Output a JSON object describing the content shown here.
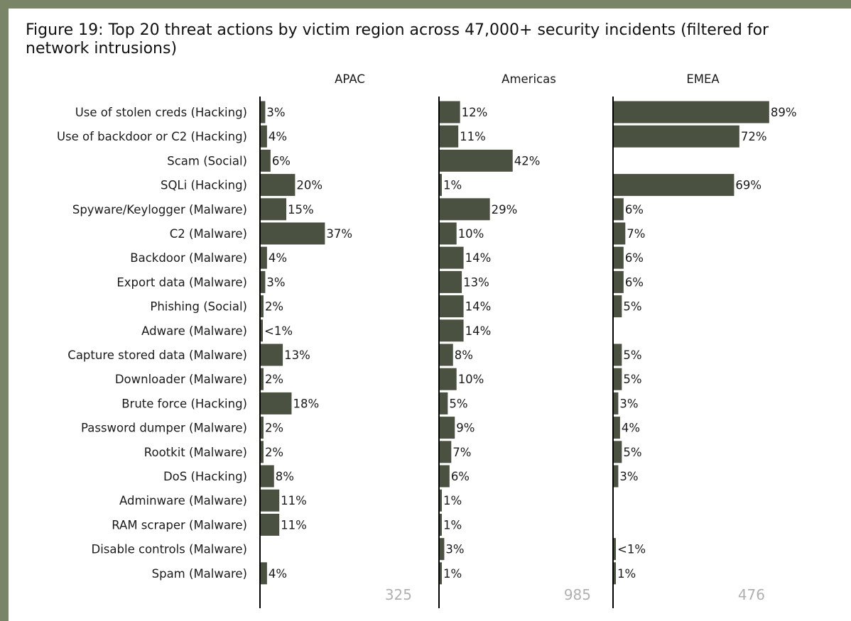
{
  "title": "Figure 19: Top 20 threat actions by victim region across 47,000+ security incidents (filtered for network intrusions)",
  "chart_data": {
    "type": "bar",
    "orientation": "horizontal",
    "categories": [
      "Use of stolen creds (Hacking)",
      "Use of backdoor or C2 (Hacking)",
      "Scam (Social)",
      "SQLi (Hacking)",
      "Spyware/Keylogger (Malware)",
      "C2 (Malware)",
      "Backdoor (Malware)",
      "Export data (Malware)",
      "Phishing (Social)",
      "Adware (Malware)",
      "Capture stored data (Malware)",
      "Downloader (Malware)",
      "Brute force (Hacking)",
      "Password dumper (Malware)",
      "Rootkit (Malware)",
      "DoS (Hacking)",
      "Adminware (Malware)",
      "RAM scraper (Malware)",
      "Disable controls (Malware)",
      "Spam (Malware)"
    ],
    "unit": "%",
    "xlim": [
      0,
      100
    ],
    "bar_color": "#4a5140",
    "series": [
      {
        "name": "APAC",
        "total": "325",
        "values": [
          3,
          4,
          6,
          20,
          15,
          37,
          4,
          3,
          2,
          0.5,
          13,
          2,
          18,
          2,
          2,
          8,
          11,
          11,
          null,
          4
        ],
        "labels": [
          "3%",
          "4%",
          "6%",
          "20%",
          "15%",
          "37%",
          "4%",
          "3%",
          "2%",
          "<1%",
          "13%",
          "2%",
          "18%",
          "2%",
          "2%",
          "8%",
          "11%",
          "11%",
          "",
          "4%"
        ]
      },
      {
        "name": "Americas",
        "total": "985",
        "values": [
          12,
          11,
          42,
          1,
          29,
          10,
          14,
          13,
          14,
          14,
          8,
          10,
          5,
          9,
          7,
          6,
          1,
          1,
          3,
          1
        ],
        "labels": [
          "12%",
          "11%",
          "42%",
          "1%",
          "29%",
          "10%",
          "14%",
          "13%",
          "14%",
          "14%",
          "8%",
          "10%",
          "5%",
          "9%",
          "7%",
          "6%",
          "1%",
          "1%",
          "3%",
          "1%"
        ]
      },
      {
        "name": "EMEA",
        "total": "476",
        "values": [
          89,
          72,
          null,
          69,
          6,
          7,
          6,
          6,
          5,
          null,
          5,
          5,
          3,
          4,
          5,
          3,
          null,
          null,
          0.5,
          1
        ],
        "labels": [
          "89%",
          "72%",
          "",
          "69%",
          "6%",
          "7%",
          "6%",
          "6%",
          "5%",
          "",
          "5%",
          "5%",
          "3%",
          "4%",
          "5%",
          "3%",
          "",
          "",
          "<1%",
          "1%"
        ]
      }
    ]
  }
}
